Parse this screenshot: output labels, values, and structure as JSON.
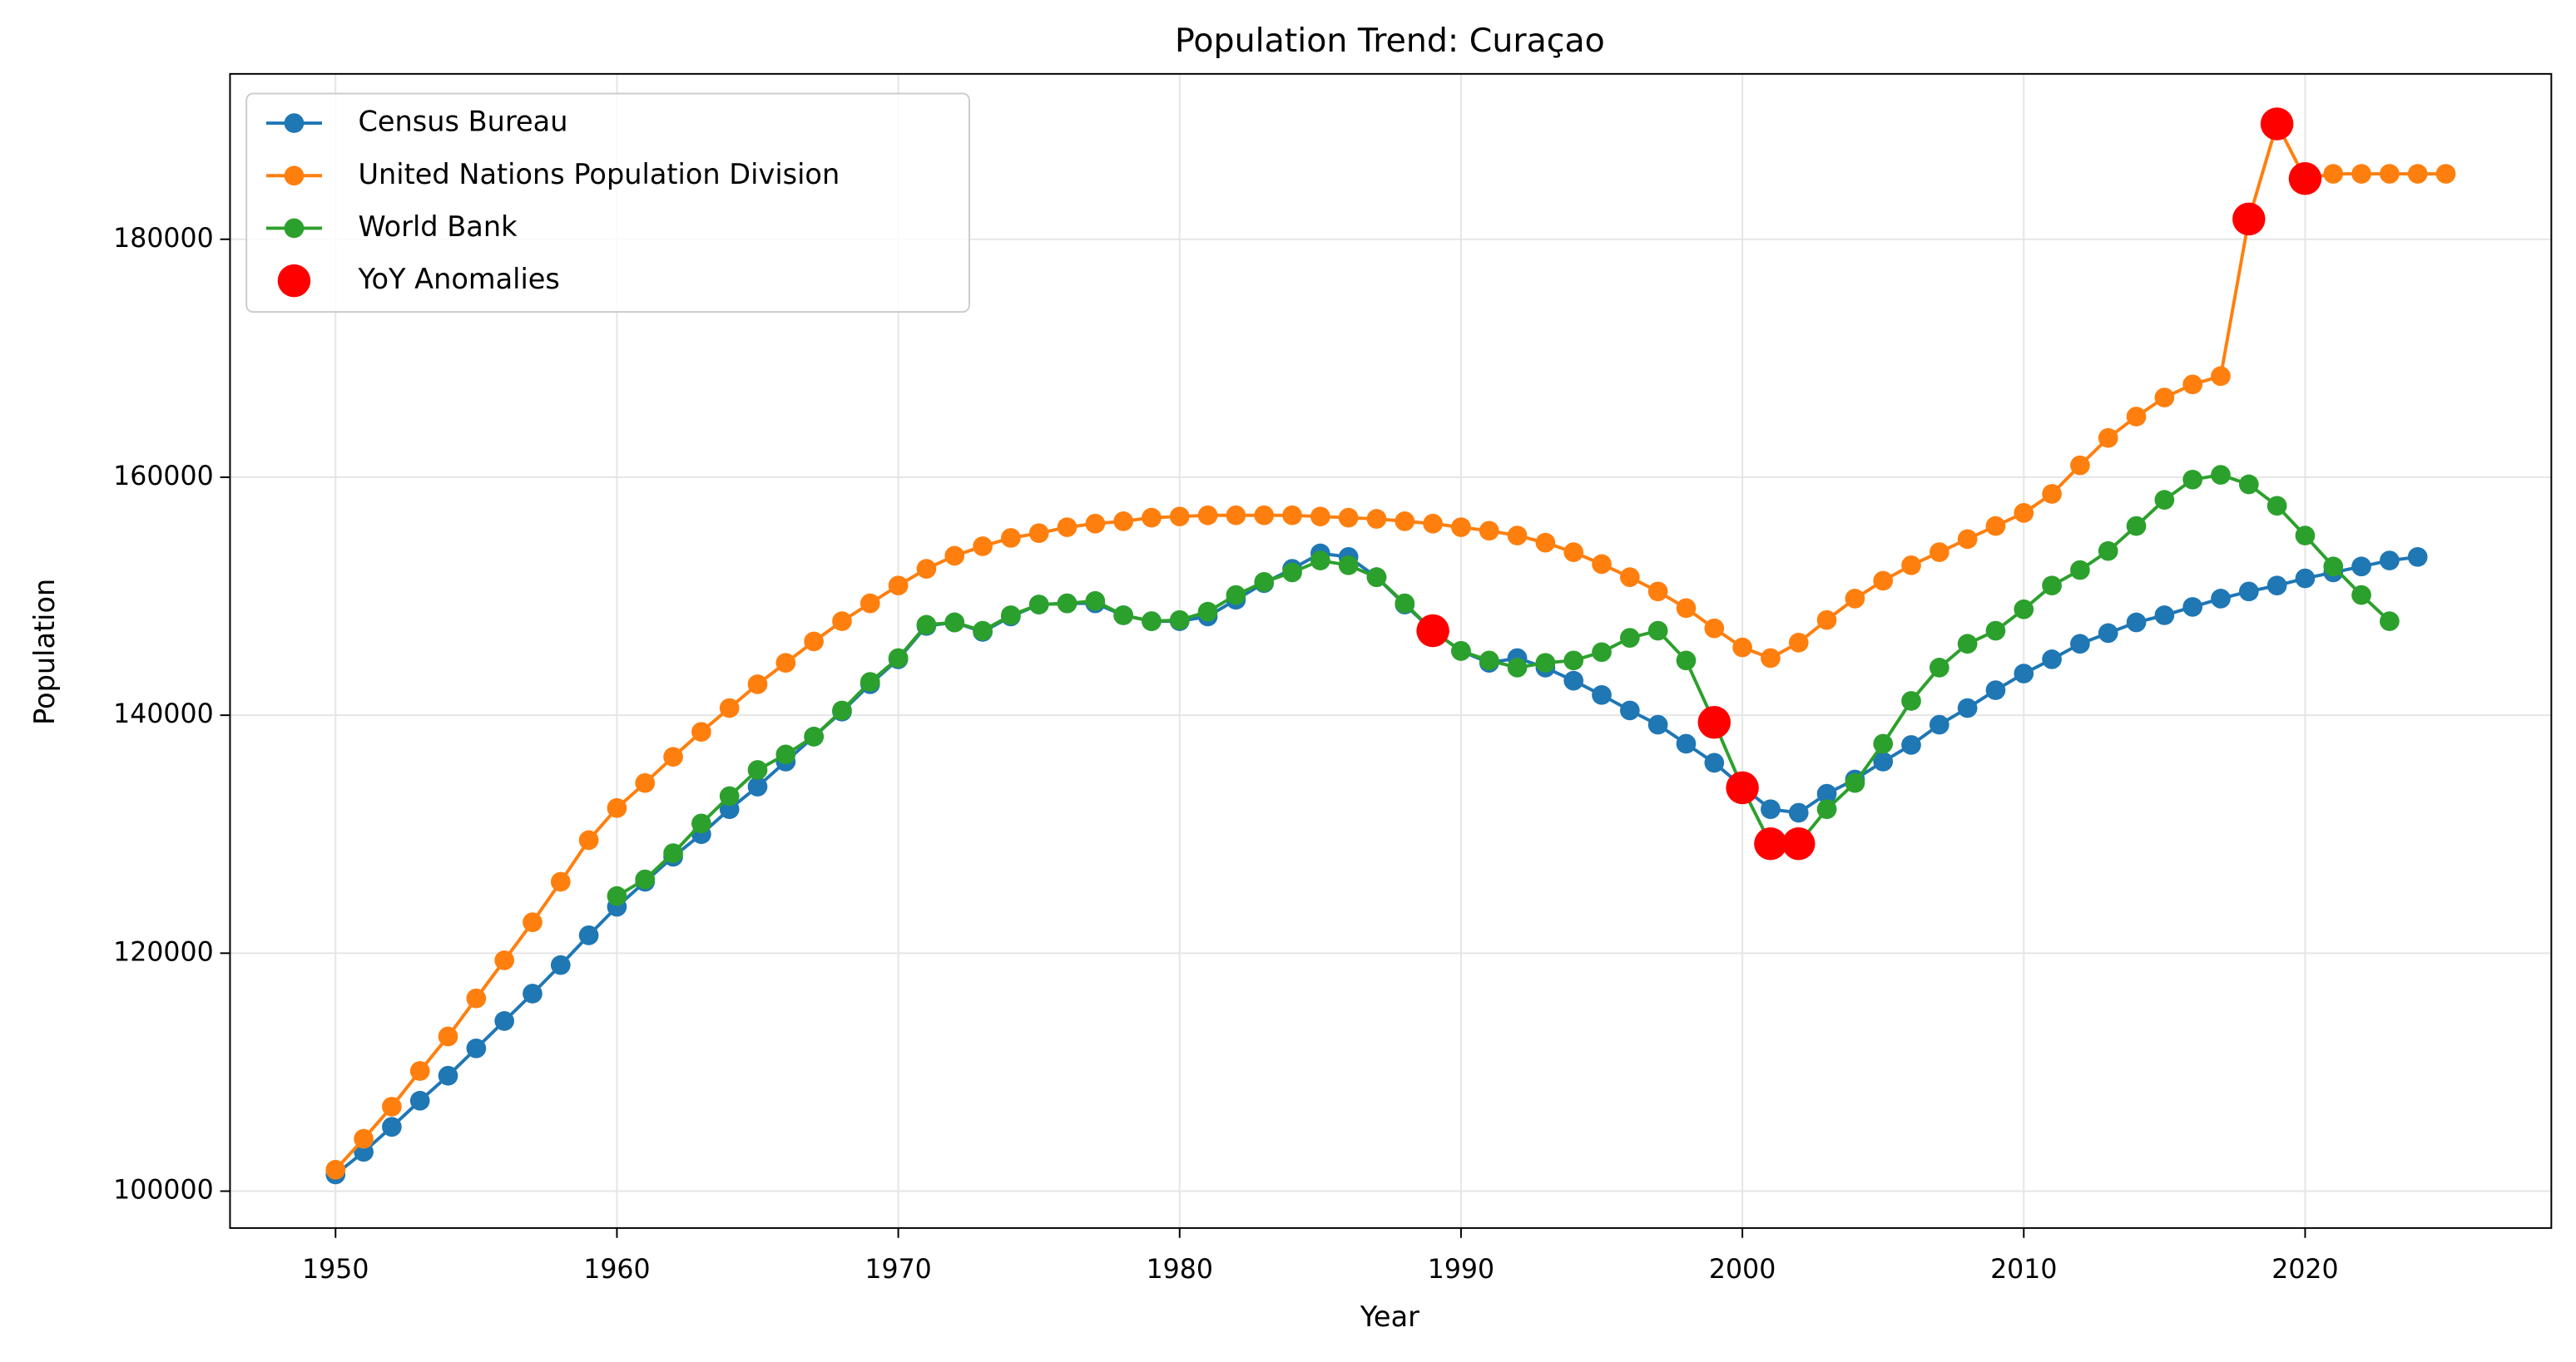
{
  "chart_data": {
    "type": "line",
    "title": "Population Trend: Curaçao",
    "x_label": "Year",
    "y_label": "Population",
    "xlim": [
      1946.25,
      2028.75
    ],
    "xticks": [
      1950,
      1960,
      1970,
      1980,
      1990,
      2000,
      2010,
      2020
    ],
    "ylim": [
      96900,
      193900
    ],
    "yticks": [
      100000,
      120000,
      140000,
      160000,
      180000
    ],
    "grid": true,
    "legend": "upper left",
    "series": [
      {
        "name": "Census Bureau",
        "color": "#1f77b4",
        "type": "line",
        "x": [
          1950,
          1951,
          1952,
          1953,
          1954,
          1955,
          1956,
          1957,
          1958,
          1959,
          1960,
          1961,
          1962,
          1963,
          1964,
          1965,
          1966,
          1967,
          1968,
          1969,
          1970,
          1971,
          1972,
          1973,
          1974,
          1975,
          1976,
          1977,
          1978,
          1979,
          1980,
          1981,
          1982,
          1983,
          1984,
          1985,
          1986,
          1987,
          1988,
          1989,
          1990,
          1991,
          1992,
          1993,
          1994,
          1995,
          1996,
          1997,
          1998,
          1999,
          2000,
          2001,
          2002,
          2003,
          2004,
          2005,
          2006,
          2007,
          2008,
          2009,
          2010,
          2011,
          2012,
          2013,
          2014,
          2015,
          2016,
          2017,
          2018,
          2019,
          2020,
          2021,
          2022,
          2023,
          2024
        ],
        "values": [
          101400,
          103300,
          105400,
          107600,
          109700,
          112000,
          114300,
          116600,
          119000,
          121500,
          123900,
          126000,
          128100,
          130000,
          132100,
          134000,
          136100,
          138200,
          140300,
          142600,
          144700,
          147500,
          147800,
          147000,
          148300,
          149300,
          149400,
          149400,
          148400,
          147900,
          147900,
          148300,
          149700,
          151100,
          152300,
          153600,
          153300,
          151600,
          149300,
          147100,
          145400,
          144400,
          144800,
          144000,
          142900,
          141700,
          140400,
          139200,
          137600,
          136000,
          134000,
          132100,
          131800,
          133400,
          134600,
          136100,
          137500,
          139200,
          140600,
          142100,
          143500,
          144700,
          146000,
          146900,
          147800,
          148400,
          149100,
          149800,
          150400,
          150900,
          151500,
          152000,
          152500,
          153000,
          153300
        ]
      },
      {
        "name": "United Nations Population Division",
        "color": "#ff7f0e",
        "type": "line",
        "x": [
          1950,
          1951,
          1952,
          1953,
          1954,
          1955,
          1956,
          1957,
          1958,
          1959,
          1960,
          1961,
          1962,
          1963,
          1964,
          1965,
          1966,
          1967,
          1968,
          1969,
          1970,
          1971,
          1972,
          1973,
          1974,
          1975,
          1976,
          1977,
          1978,
          1979,
          1980,
          1981,
          1982,
          1983,
          1984,
          1985,
          1986,
          1987,
          1988,
          1989,
          1990,
          1991,
          1992,
          1993,
          1994,
          1995,
          1996,
          1997,
          1998,
          1999,
          2000,
          2001,
          2002,
          2003,
          2004,
          2005,
          2006,
          2007,
          2008,
          2009,
          2010,
          2011,
          2012,
          2013,
          2014,
          2015,
          2016,
          2017,
          2018,
          2019,
          2020,
          2021,
          2022,
          2023,
          2024,
          2025
        ],
        "values": [
          101800,
          104400,
          107100,
          110100,
          113000,
          116200,
          119400,
          122600,
          126000,
          129500,
          132200,
          134300,
          136500,
          138600,
          140600,
          142600,
          144400,
          146200,
          147900,
          149400,
          150900,
          152300,
          153400,
          154200,
          154900,
          155300,
          155800,
          156100,
          156300,
          156600,
          156700,
          156800,
          156800,
          156800,
          156800,
          156700,
          156600,
          156500,
          156300,
          156100,
          155800,
          155500,
          155100,
          154500,
          153700,
          152700,
          151600,
          150400,
          149000,
          147300,
          145700,
          144800,
          146100,
          148000,
          149800,
          151300,
          152600,
          153700,
          154800,
          155900,
          157000,
          158600,
          161000,
          163300,
          165100,
          166700,
          167800,
          168500,
          181700,
          189700,
          185100,
          185500,
          185500,
          185500,
          185500,
          185500
        ]
      },
      {
        "name": "World Bank",
        "color": "#2ca02c",
        "type": "line",
        "x": [
          1960,
          1961,
          1962,
          1963,
          1964,
          1965,
          1966,
          1967,
          1968,
          1969,
          1970,
          1971,
          1972,
          1973,
          1974,
          1975,
          1976,
          1977,
          1978,
          1979,
          1980,
          1981,
          1982,
          1983,
          1984,
          1985,
          1986,
          1987,
          1988,
          1989,
          1990,
          1991,
          1992,
          1993,
          1994,
          1995,
          1996,
          1997,
          1998,
          1999,
          2000,
          2001,
          2002,
          2003,
          2004,
          2005,
          2006,
          2007,
          2008,
          2009,
          2010,
          2011,
          2012,
          2013,
          2014,
          2015,
          2016,
          2017,
          2018,
          2019,
          2020,
          2021,
          2022,
          2023
        ],
        "values": [
          124800,
          126200,
          128400,
          130900,
          133200,
          135400,
          136700,
          138200,
          140400,
          142800,
          144800,
          147600,
          147800,
          147100,
          148400,
          149300,
          149400,
          149600,
          148400,
          147900,
          148000,
          148700,
          150100,
          151200,
          152000,
          153000,
          152600,
          151600,
          149400,
          147100,
          145400,
          144600,
          144000,
          144400,
          144600,
          145300,
          146500,
          147100,
          144600,
          139400,
          133900,
          129200,
          129200,
          132100,
          134300,
          137600,
          141200,
          144000,
          146000,
          147100,
          148900,
          150900,
          152200,
          153800,
          155900,
          158100,
          159800,
          160200,
          159400,
          157600,
          155100,
          152500,
          150100,
          147900
        ]
      },
      {
        "name": "YoY Anomalies",
        "color": "#ff0000",
        "type": "scatter",
        "x": [
          1989,
          1999,
          2000,
          2001,
          2002,
          2018,
          2019,
          2020
        ],
        "values": [
          147100,
          139400,
          133900,
          129200,
          129200,
          181700,
          189700,
          185100
        ]
      }
    ]
  }
}
